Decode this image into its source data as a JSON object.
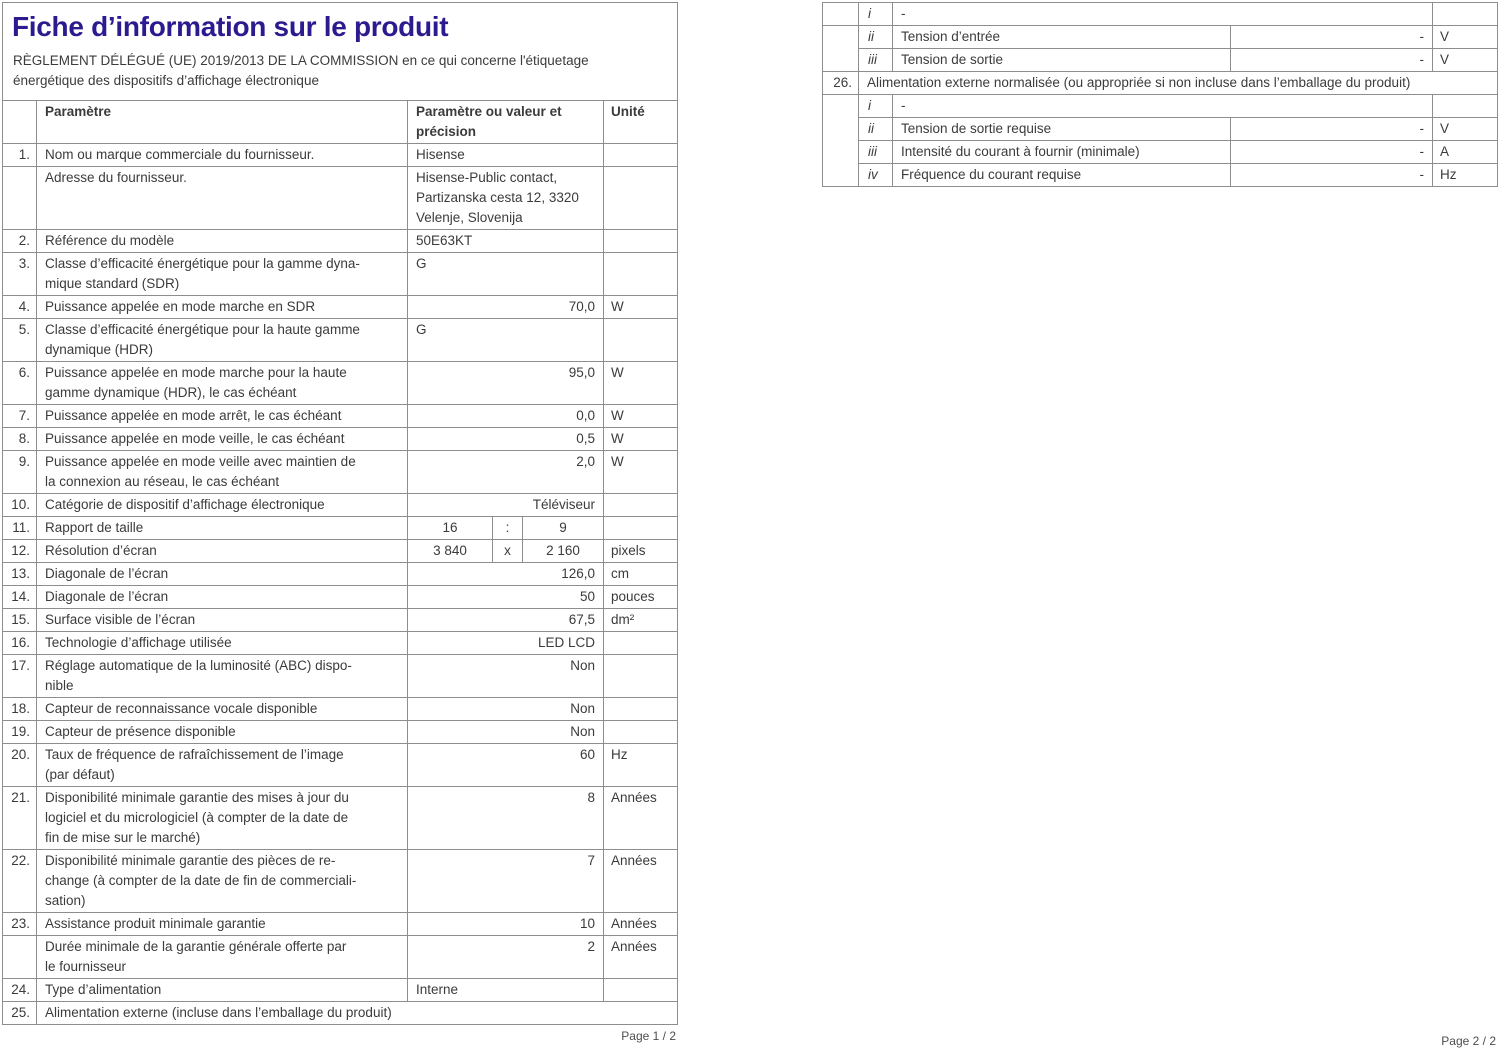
{
  "page1": {
    "title": "Fiche d’information sur le produit",
    "subtitle": "RÈGLEMENT DÉLÉGUÉ (UE) 2019/2013 DE LA COMMISSION en ce qui concerne l'étiquetage\nénergétique des dispositifs d’affichage électronique",
    "headers": {
      "param": "Paramètre",
      "value": "Paramètre ou valeur et précision",
      "unit": "Unité"
    },
    "rows": [
      {
        "num": "1.",
        "label": "Nom ou marque commerciale du fournisseur.",
        "value": "Hisense",
        "unit": "",
        "align": "left"
      },
      {
        "num": "",
        "label": "Adresse du fournisseur.",
        "value": "Hisense-Public contact,\nPartizanska cesta 12, 3320\nVelenje, Slovenija",
        "unit": "",
        "align": "left"
      },
      {
        "num": "2.",
        "label": "Référence du modèle",
        "value": "50E63KT",
        "unit": "",
        "align": "left"
      },
      {
        "num": "3.",
        "label": "Classe d’efficacité énergétique pour la gamme dyna-\nmique standard (SDR)",
        "value": "G",
        "unit": "",
        "align": "left"
      },
      {
        "num": "4.",
        "label": "Puissance appelée en mode marche en SDR",
        "value": "70,0",
        "unit": "W",
        "align": "right"
      },
      {
        "num": "5.",
        "label": "Classe d’efficacité énergétique pour la haute gamme\ndynamique (HDR)",
        "value": "G",
        "unit": "",
        "align": "left"
      },
      {
        "num": "6.",
        "label": "Puissance appelée en mode marche pour la haute\ngamme dynamique (HDR), le cas échéant",
        "value": "95,0",
        "unit": "W",
        "align": "right"
      },
      {
        "num": "7.",
        "label": "Puissance appelée en mode arrêt, le cas échéant",
        "value": "0,0",
        "unit": "W",
        "align": "right"
      },
      {
        "num": "8.",
        "label": "Puissance appelée en mode veille, le cas échéant",
        "value": "0,5",
        "unit": "W",
        "align": "right"
      },
      {
        "num": "9.",
        "label": "Puissance appelée en mode veille avec maintien de\nla connexion au réseau, le cas échéant",
        "value": "2,0",
        "unit": "W",
        "align": "right"
      },
      {
        "num": "10.",
        "label": "Catégorie de dispositif d’affichage électronique",
        "value": "Téléviseur",
        "unit": "",
        "align": "right"
      },
      {
        "num": "11.",
        "label": "Rapport de taille",
        "value3": [
          "16",
          ":",
          "9"
        ],
        "unit": ""
      },
      {
        "num": "12.",
        "label": "Résolution d’écran",
        "value3": [
          "3 840",
          "x",
          "2 160"
        ],
        "unit": "pixels"
      },
      {
        "num": "13.",
        "label": "Diagonale de l’écran",
        "value": "126,0",
        "unit": "cm",
        "align": "right"
      },
      {
        "num": "14.",
        "label": "Diagonale de l’écran",
        "value": "50",
        "unit": "pouces",
        "align": "right"
      },
      {
        "num": "15.",
        "label": "Surface visible de l’écran",
        "value": "67,5",
        "unit": "dm²",
        "align": "right"
      },
      {
        "num": "16.",
        "label": "Technologie d’affichage utilisée",
        "value": "LED LCD",
        "unit": "",
        "align": "right"
      },
      {
        "num": "17.",
        "label": "Réglage automatique de la luminosité (ABC) dispo-\nnible",
        "value": "Non",
        "unit": "",
        "align": "right"
      },
      {
        "num": "18.",
        "label": "Capteur de reconnaissance vocale disponible",
        "value": "Non",
        "unit": "",
        "align": "right"
      },
      {
        "num": "19.",
        "label": "Capteur de présence disponible",
        "value": "Non",
        "unit": "",
        "align": "right"
      },
      {
        "num": "20.",
        "label": "Taux de fréquence de rafraîchissement de l’image\n(par défaut)",
        "value": "60",
        "unit": "Hz",
        "align": "right"
      },
      {
        "num": "21.",
        "label": "Disponibilité minimale garantie des mises à jour du\nlogiciel et du micrologiciel (à compter de la date de\nfin de mise sur le marché)",
        "value": "8",
        "unit": "Années",
        "align": "right"
      },
      {
        "num": "22.",
        "label": "Disponibilité minimale garantie des pièces de re-\nchange (à compter de la date de fin de commerciali-\nsation)",
        "value": "7",
        "unit": "Années",
        "align": "right"
      },
      {
        "num": "23.",
        "label": "Assistance produit minimale garantie",
        "value": "10",
        "unit": "Années",
        "align": "right"
      },
      {
        "num": "",
        "label": "Durée minimale de la garantie générale offerte par\nle fournisseur",
        "value": "2",
        "unit": "Années",
        "align": "right"
      },
      {
        "num": "24.",
        "label": "Type d’alimentation",
        "value": "Interne",
        "unit": "",
        "align": "left"
      },
      {
        "num": "25.",
        "span": "Alimentation externe (incluse dans l’emballage du produit)"
      }
    ],
    "footer": "Page 1 / 2"
  },
  "page2": {
    "rows": [
      {
        "num": "",
        "numspan": 1,
        "roman": "i",
        "dash": "-"
      },
      {
        "num": "",
        "numspan": 2,
        "roman": "ii",
        "label": "Tension d’entrée",
        "value": "-",
        "unit": "V"
      },
      {
        "roman": "iii",
        "label": "Tension de sortie",
        "value": "-",
        "unit": "V"
      },
      {
        "num": "26.",
        "numspan": 1,
        "span": "Alimentation externe normalisée (ou appropriée si non incluse dans l’emballage du produit)"
      },
      {
        "num": "",
        "numspan": 4,
        "roman": "i",
        "dash": "-"
      },
      {
        "roman": "ii",
        "label": "Tension de sortie requise",
        "value": "-",
        "unit": "V"
      },
      {
        "roman": "iii",
        "label": "Intensité du courant à fournir (minimale)",
        "value": "-",
        "unit": "A"
      },
      {
        "roman": "iv",
        "label": "Fréquence du courant requise",
        "value": "-",
        "unit": "Hz"
      }
    ],
    "footer": "Page 2 / 2"
  }
}
